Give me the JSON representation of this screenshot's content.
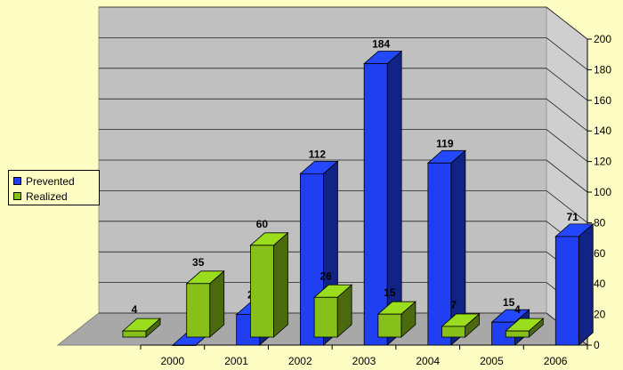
{
  "chart_data": {
    "type": "bar",
    "categories": [
      "2000",
      "2001",
      "2002",
      "2003",
      "2004",
      "2005",
      "2006"
    ],
    "series": [
      {
        "name": "Realized",
        "values": [
          4,
          35,
          60,
          26,
          15,
          7,
          4
        ]
      },
      {
        "name": "Prevented",
        "values": [
          0,
          20,
          112,
          184,
          119,
          15,
          71
        ]
      }
    ],
    "ylim": [
      0,
      200
    ],
    "yticks": [
      0,
      20,
      40,
      60,
      80,
      100,
      120,
      140,
      160,
      180,
      200
    ],
    "grid": true,
    "legend_position": "left",
    "colors": {
      "Prevented": "#1f3ff0",
      "Realized": "#86c018",
      "background": "#fefec4",
      "wall": "#c0c0c0"
    }
  }
}
